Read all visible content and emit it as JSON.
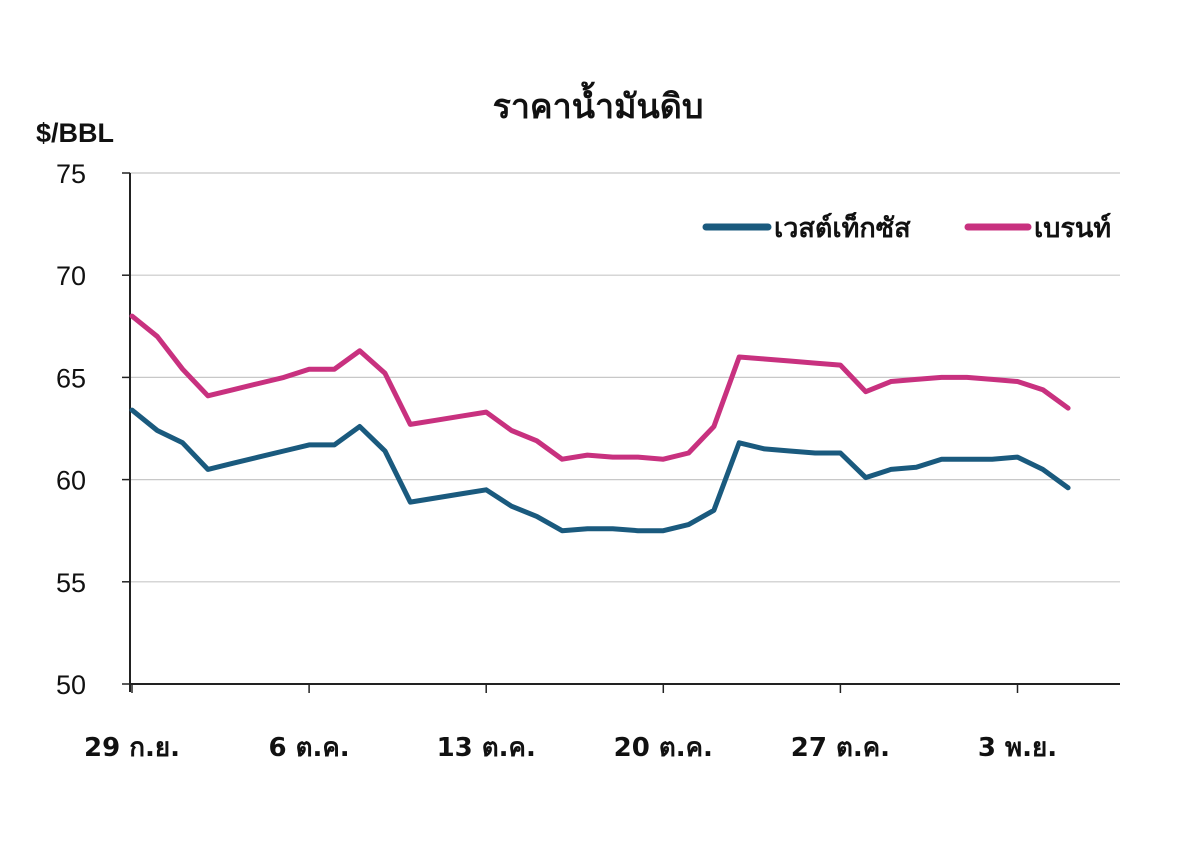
{
  "chart_data": {
    "type": "line",
    "title": "ราคาน้ำมันดิบ",
    "ylabel": "$/BBL",
    "ylim": [
      50,
      75
    ],
    "yticks": [
      "50",
      "55",
      "60",
      "65",
      "70",
      "75"
    ],
    "x_labels": [
      "29 ก.ย.",
      "6 ต.ค.",
      "13 ต.ค.",
      "20 ต.ค.",
      "27 ต.ค.",
      "3 พ.ย."
    ],
    "x": [
      "29 ก.ย.",
      "30 ก.ย.",
      "1 ต.ค.",
      "2 ต.ค.",
      "3 ต.ค.",
      "4 ต.ค.",
      "5 ต.ค.",
      "6 ต.ค.",
      "7 ต.ค.",
      "8 ต.ค.",
      "9 ต.ค.",
      "10 ต.ค.",
      "11 ต.ค.",
      "12 ต.ค.",
      "13 ต.ค.",
      "14 ต.ค.",
      "15 ต.ค.",
      "16 ต.ค.",
      "17 ต.ค.",
      "18 ต.ค.",
      "19 ต.ค.",
      "20 ต.ค.",
      "21 ต.ค.",
      "22 ต.ค.",
      "23 ต.ค.",
      "24 ต.ค.",
      "25 ต.ค.",
      "26 ต.ค.",
      "27 ต.ค.",
      "28 ต.ค.",
      "29 ต.ค.",
      "30 ต.ค.",
      "31 ต.ค.",
      "1 พ.ย.",
      "2 พ.ย.",
      "3 พ.ย.",
      "4 พ.ย.",
      "5 พ.ย."
    ],
    "grid": true,
    "legend_position": "top-right",
    "series": [
      {
        "name": "เวสต์เท็กซัส",
        "color": "#1a5a7e",
        "values": [
          63.4,
          62.4,
          61.8,
          60.5,
          60.8,
          61.1,
          61.4,
          61.7,
          61.7,
          62.6,
          61.4,
          58.9,
          59.1,
          59.3,
          59.5,
          58.7,
          58.2,
          57.5,
          57.6,
          57.6,
          57.5,
          57.5,
          57.8,
          58.5,
          61.8,
          61.5,
          61.4,
          61.3,
          61.3,
          60.1,
          60.5,
          60.6,
          61.0,
          61.0,
          61.0,
          61.1,
          60.5,
          59.6
        ]
      },
      {
        "name": "เบรนท์",
        "color": "#c8317f",
        "values": [
          68.0,
          67.0,
          65.4,
          64.1,
          64.4,
          64.7,
          65.0,
          65.4,
          65.4,
          66.3,
          65.2,
          62.7,
          62.9,
          63.1,
          63.3,
          62.4,
          61.9,
          61.0,
          61.2,
          61.1,
          61.1,
          61.0,
          61.3,
          62.6,
          66.0,
          65.9,
          65.8,
          65.7,
          65.6,
          64.3,
          64.8,
          64.9,
          65.0,
          65.0,
          64.9,
          64.8,
          64.4,
          63.5
        ]
      }
    ]
  }
}
